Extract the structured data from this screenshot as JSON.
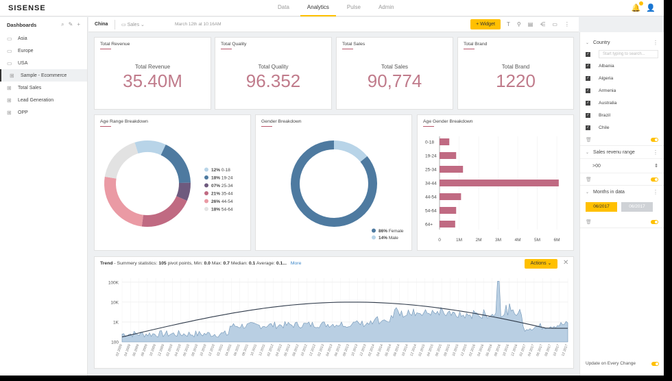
{
  "app": {
    "logo": "SISENSE"
  },
  "topnav": {
    "items": [
      "Data",
      "Analytics",
      "Pulse",
      "Admin"
    ],
    "active": "Analytics"
  },
  "top_icons": {
    "notifications": "bell-icon",
    "user": "user-icon"
  },
  "sidebar": {
    "title": "Dashboards",
    "items": [
      {
        "label": "Asia",
        "icon": "folder-icon"
      },
      {
        "label": "Europe",
        "icon": "folder-icon"
      },
      {
        "label": "USA",
        "icon": "folder-icon"
      },
      {
        "label": "Sample - Ecommerce",
        "icon": "dashboard-icon",
        "active": true
      },
      {
        "label": "Total Sales",
        "icon": "dashboard-icon"
      },
      {
        "label": "Lead Generation",
        "icon": "dashboard-icon"
      },
      {
        "label": "OPP",
        "icon": "dashboard-icon"
      }
    ]
  },
  "toolbar": {
    "dashboard_name": "China",
    "folder": "Sales",
    "updated": "March 12th at 10:16AM",
    "widget_button": "Widget"
  },
  "kpis": [
    {
      "title": "Total Revenue",
      "label": "Total Revenue",
      "value": "35.40M"
    },
    {
      "title": "Total Quality",
      "label": "Total Quality",
      "value": "96.352"
    },
    {
      "title": "Total Sales",
      "label": "Total Sales",
      "value": "90,774"
    },
    {
      "title": "Total Brand",
      "label": "Total Brand",
      "value": "1220"
    }
  ],
  "colors": {
    "accent": "#ffc000",
    "brand_red": "#b8576b",
    "blue": "#4e7aa0"
  },
  "chart_data": [
    {
      "type": "pie",
      "title": "Age Range Breakdown",
      "donut": true,
      "categories": [
        "0-18",
        "19-24",
        "25-34",
        "35-44",
        "44-54",
        "54-64"
      ],
      "values": [
        12,
        18,
        7,
        21,
        26,
        18
      ],
      "labels": [
        "12%",
        "18%",
        "07%",
        "21%",
        "26%",
        "18%"
      ],
      "colors": [
        "#b8d4e8",
        "#4e7aa0",
        "#6e5a7e",
        "#c06a82",
        "#ea9aa4",
        "#e2e2e2"
      ],
      "legend": "right"
    },
    {
      "type": "pie",
      "title": "Gender Breakdown",
      "donut": true,
      "categories": [
        "Female",
        "Male"
      ],
      "values": [
        86,
        14
      ],
      "labels": [
        "86%",
        "14%"
      ],
      "colors": [
        "#4e7aa0",
        "#b8d4e8"
      ],
      "legend": "bottom"
    },
    {
      "type": "bar",
      "title": "Age Gender Breakdown",
      "orientation": "horizontal",
      "categories": [
        "0-18",
        "19-24",
        "25-34",
        "34-44",
        "44-54",
        "54-64",
        "64+"
      ],
      "series": [
        {
          "values": [
            0.5,
            0.85,
            1.2,
            6.1,
            1.1,
            0.85,
            0.8
          ],
          "color": "#c06a82"
        }
      ],
      "xticks": [
        "0",
        "1M",
        "2M",
        "3M",
        "4M",
        "5M",
        "6M"
      ],
      "xlim": [
        0,
        6
      ]
    },
    {
      "type": "area",
      "title": "Trend",
      "summary": {
        "prefix": "- Summery statistics:",
        "pivot_points": "105",
        "pivot_label": "pivot points, Min:",
        "min": "0.0",
        "max_label": "Max:",
        "max": "0.7",
        "median_label": "Median:",
        "median": "0.1",
        "average_label": "Average:",
        "average": "0.1...",
        "more": "More"
      },
      "y_scale": "log",
      "yticks": [
        "100K",
        "10K",
        "1K",
        "100"
      ],
      "x_labels": [
        "02 2009",
        "04 2009",
        "06 2009",
        "08 2009",
        "10 2009",
        "12 2009",
        "02 2010",
        "04 2010",
        "06 2010",
        "08 2010",
        "10 2010",
        "12 2010",
        "02 2011",
        "04 2011",
        "06 2011",
        "08 2011",
        "10 2011",
        "12 2011",
        "02 2012",
        "04 2012",
        "06 2012",
        "08 2012",
        "10 2012",
        "12 2012",
        "02 2013",
        "04 2013",
        "06 2013",
        "08 2013",
        "10 2013",
        "12 2013",
        "02 2014",
        "04 2014",
        "06 2014",
        "08 2014",
        "10 2014",
        "12 2014",
        "02 2015",
        "04 2015",
        "06 2015",
        "08 2015",
        "10 2015",
        "12 2015",
        "02 2016",
        "04 2016",
        "06 2016",
        "08 2016",
        "10 2016",
        "12 2016",
        "02 2017",
        "04 2017",
        "06 2017",
        "08 2017",
        "10 2017",
        "12 2017"
      ],
      "area_color": "#b9cfe3",
      "trend_line": true
    }
  ],
  "trend_widget": {
    "actions_label": "Actions"
  },
  "filters": {
    "country": {
      "title": "Country",
      "search_placeholder": "Start typing to search...",
      "options": [
        "Albania",
        "Algeria",
        "Armenia",
        "Australia",
        "Brazil",
        "Chile"
      ]
    },
    "sales_range": {
      "title": "Sales revenu range",
      "value": ">00"
    },
    "months": {
      "title": "Months in data",
      "from": "06/2017",
      "to": "06/2017"
    },
    "update_label": "Update on Every Change"
  }
}
